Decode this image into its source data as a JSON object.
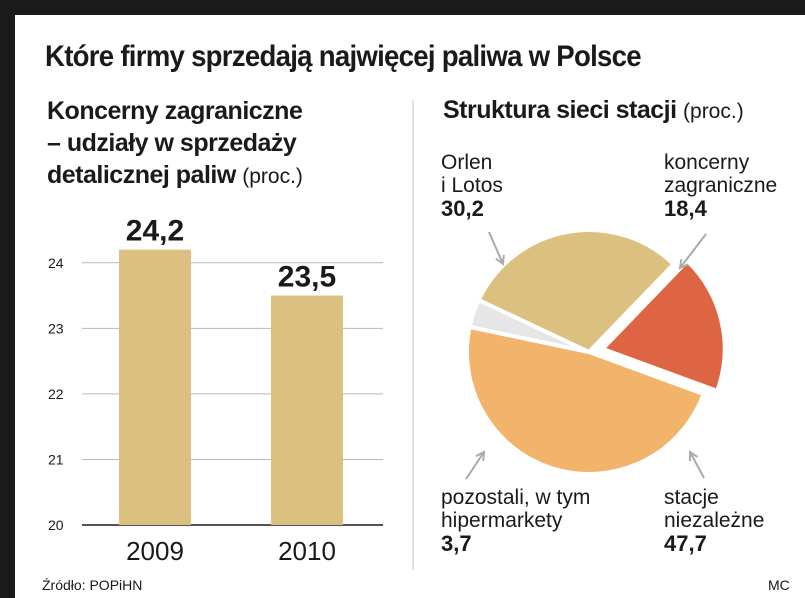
{
  "title": "Które firmy sprzedają najwięcej paliwa w Polsce",
  "colors": {
    "bar": "#dcc07f",
    "orlen_lotos": "#dcc07f",
    "foreign": "#de6544",
    "independent": "#f2b46b",
    "other": "#e6e6e6",
    "frame": "#1a1a1a",
    "grid": "#b9b9b9"
  },
  "left_panel": {
    "subtitle_line1": "Koncerny zagraniczne",
    "subtitle_line2": "– udziały w sprzedaży",
    "subtitle_line3": "detalicznej paliw",
    "unit": "(proc.)"
  },
  "right_panel": {
    "subtitle": "Struktura sieci stacji",
    "unit": "(proc.)"
  },
  "chart_data": [
    {
      "type": "bar",
      "categories": [
        "2009",
        "2010"
      ],
      "values": [
        24.2,
        23.5
      ],
      "data_labels": [
        "24,2",
        "23,5"
      ],
      "ylim": [
        20,
        24.5
      ],
      "yticks": [
        20,
        21,
        22,
        23,
        24
      ],
      "ytick_labels": [
        "20",
        "21",
        "22",
        "23",
        "24"
      ],
      "grid": true
    },
    {
      "type": "pie",
      "slices": [
        {
          "label_line1": "Orlen",
          "label_line2": "i Lotos",
          "value": 30.2,
          "value_label": "30,2",
          "color_key": "orlen_lotos"
        },
        {
          "label_line1": "koncerny",
          "label_line2": "zagraniczne",
          "value": 18.4,
          "value_label": "18,4",
          "color_key": "foreign",
          "exploded": true
        },
        {
          "label_line1": "stacje",
          "label_line2": "niezależne",
          "value": 47.7,
          "value_label": "47,7",
          "color_key": "independent"
        },
        {
          "label_line1": "pozostali, w tym",
          "label_line2": "hipermarkety",
          "value": 3.7,
          "value_label": "3,7",
          "color_key": "other"
        }
      ]
    }
  ],
  "footer": {
    "source": "Źródło: POPiHN",
    "credit": "MC"
  }
}
